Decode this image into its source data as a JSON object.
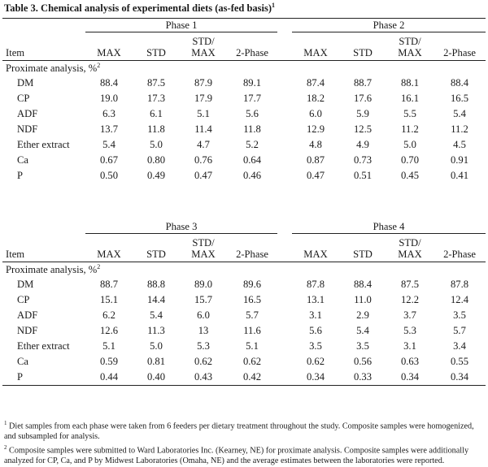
{
  "title": "Table 3. Chemical analysis of experimental diets (as-fed basis)",
  "title_sup": "1",
  "columns": {
    "item": "Item",
    "max": "MAX",
    "std": "STD",
    "stdmax_top": "STD/",
    "stdmax_bottom": "MAX",
    "two_phase": "2-Phase"
  },
  "section_label": "Proximate analysis, %",
  "section_sup": "2",
  "table_top": {
    "phase_left": "Phase 1",
    "phase_right": "Phase 2",
    "rows": [
      {
        "label": "DM",
        "left": [
          "88.4",
          "87.5",
          "87.9",
          "89.1"
        ],
        "right": [
          "87.4",
          "88.7",
          "88.1",
          "88.4"
        ]
      },
      {
        "label": "CP",
        "left": [
          "19.0",
          "17.3",
          "17.9",
          "17.7"
        ],
        "right": [
          "18.2",
          "17.6",
          "16.1",
          "16.5"
        ]
      },
      {
        "label": "ADF",
        "left": [
          "6.3",
          "6.1",
          "5.1",
          "5.6"
        ],
        "right": [
          "6.0",
          "5.9",
          "5.5",
          "5.4"
        ]
      },
      {
        "label": "NDF",
        "left": [
          "13.7",
          "11.8",
          "11.4",
          "11.8"
        ],
        "right": [
          "12.9",
          "12.5",
          "11.2",
          "11.2"
        ]
      },
      {
        "label": "Ether extract",
        "left": [
          "5.4",
          "5.0",
          "4.7",
          "5.2"
        ],
        "right": [
          "4.8",
          "4.9",
          "5.0",
          "4.5"
        ]
      },
      {
        "label": "Ca",
        "left": [
          "0.67",
          "0.80",
          "0.76",
          "0.64"
        ],
        "right": [
          "0.87",
          "0.73",
          "0.70",
          "0.91"
        ]
      },
      {
        "label": "P",
        "left": [
          "0.50",
          "0.49",
          "0.47",
          "0.46"
        ],
        "right": [
          "0.47",
          "0.51",
          "0.45",
          "0.41"
        ]
      }
    ]
  },
  "table_bottom": {
    "phase_left": "Phase 3",
    "phase_right": "Phase 4",
    "rows": [
      {
        "label": "DM",
        "left": [
          "88.7",
          "88.8",
          "89.0",
          "89.6"
        ],
        "right": [
          "87.8",
          "88.4",
          "87.5",
          "87.8"
        ]
      },
      {
        "label": "CP",
        "left": [
          "15.1",
          "14.4",
          "15.7",
          "16.5"
        ],
        "right": [
          "13.1",
          "11.0",
          "12.2",
          "12.4"
        ]
      },
      {
        "label": "ADF",
        "left": [
          "6.2",
          "5.4",
          "6.0",
          "5.7"
        ],
        "right": [
          "3.1",
          "2.9",
          "3.7",
          "3.5"
        ]
      },
      {
        "label": "NDF",
        "left": [
          "12.6",
          "11.3",
          "13",
          "11.6"
        ],
        "right": [
          "5.6",
          "5.4",
          "5.3",
          "5.7"
        ]
      },
      {
        "label": "Ether extract",
        "left": [
          "5.1",
          "5.0",
          "5.3",
          "5.1"
        ],
        "right": [
          "3.5",
          "3.5",
          "3.1",
          "3.4"
        ]
      },
      {
        "label": "Ca",
        "left": [
          "0.59",
          "0.81",
          "0.62",
          "0.62"
        ],
        "right": [
          "0.62",
          "0.56",
          "0.63",
          "0.55"
        ]
      },
      {
        "label": "P",
        "left": [
          "0.44",
          "0.40",
          "0.43",
          "0.42"
        ],
        "right": [
          "0.34",
          "0.33",
          "0.34",
          "0.34"
        ]
      }
    ]
  },
  "footnotes": [
    {
      "mark": "1",
      "text": "Diet samples from each phase were taken from 6 feeders per dietary treatment throughout the study. Composite samples were homogenized, and subsampled for analysis."
    },
    {
      "mark": "2",
      "text": "Composite samples were submitted to Ward Laboratories Inc. (Kearney, NE) for proximate analysis. Composite samples were additionally analyzed for CP, Ca, and P by Midwest Laboratories (Omaha, NE) and the average estimates between the laboratories were reported."
    }
  ]
}
